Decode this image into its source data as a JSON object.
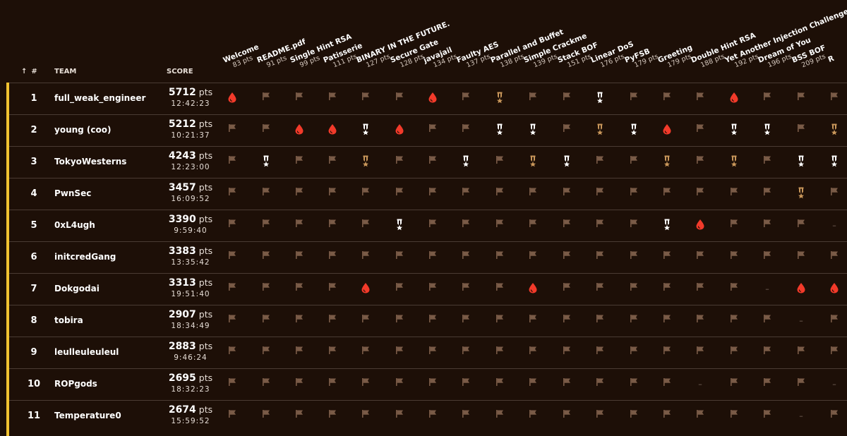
{
  "header": {
    "rank_label": "#",
    "sort_icon": "arrow-up-icon",
    "team_label": "TEAM",
    "score_label": "SCORE"
  },
  "challenges": [
    {
      "name": "Welcome",
      "points": "83 pts"
    },
    {
      "name": "README.pdf",
      "points": "91 pts"
    },
    {
      "name": "Single Hint RSA",
      "points": "99 pts"
    },
    {
      "name": "Patisserie",
      "points": "111 pts"
    },
    {
      "name": "BINARY IN THE FUTURE.",
      "points": "127 pts"
    },
    {
      "name": "Secure Gate",
      "points": "128 pts"
    },
    {
      "name": "javajail",
      "points": "134 pts"
    },
    {
      "name": "Faulty AES",
      "points": "137 pts"
    },
    {
      "name": "Parallel and Buffet",
      "points": "138 pts"
    },
    {
      "name": "Simple Crackme",
      "points": "139 pts"
    },
    {
      "name": "Stack BOF",
      "points": "151 pts"
    },
    {
      "name": "Linear DoS",
      "points": "176 pts"
    },
    {
      "name": "PyFSB",
      "points": "179 pts"
    },
    {
      "name": "Greeting",
      "points": "179 pts"
    },
    {
      "name": "Double Hint RSA",
      "points": "188 pts"
    },
    {
      "name": "Yet Another Injection Challenge",
      "points": "192 pts"
    },
    {
      "name": "Dream of You",
      "points": "196 pts"
    },
    {
      "name": "BSS BOF",
      "points": "209 pts"
    },
    {
      "name": "R",
      "points": ""
    }
  ],
  "icon_legend": {
    "F": "flag-icon",
    "B": "first-blood-icon",
    "S": "silver-medal-icon",
    "G": "bronze-medal-icon",
    "-": "unsolved-dash"
  },
  "colors": {
    "background": "#1d0f07",
    "flag": "#7a5b47",
    "first_blood": "#f23a2a",
    "silver_medal": "#ffffff",
    "bronze_medal": "#c8965a",
    "accent": "#f2c230",
    "row_border": "#4a3b33"
  },
  "teams": [
    {
      "rank": "1",
      "name": "full_weak_engineer",
      "score": "5712",
      "unit": "pts",
      "time": "12:42:23",
      "solves": "BFFFFFBFGFFSFFFBFFF"
    },
    {
      "rank": "2",
      "name": "young (coo)",
      "score": "5212",
      "unit": "pts",
      "time": "10:21:37",
      "solves": "FFBBSBFFSSFGSBFSSFG"
    },
    {
      "rank": "3",
      "name": "TokyoWesterns",
      "score": "4243",
      "unit": "pts",
      "time": "12:23:00",
      "solves": "FSFFGFFSFGSFFGFGFSS"
    },
    {
      "rank": "4",
      "name": "PwnSec",
      "score": "3457",
      "unit": "pts",
      "time": "16:09:52",
      "solves": "FFFFFFFFFFFFFFFFFGF"
    },
    {
      "rank": "5",
      "name": "0xL4ugh",
      "score": "3390",
      "unit": "pts",
      "time": "9:59:40",
      "solves": "FFFFFSFFFFFFFSBFFF-"
    },
    {
      "rank": "6",
      "name": "initcredGang",
      "score": "3383",
      "unit": "pts",
      "time": "13:35:42",
      "solves": "FFFFFFFFFFFFFFFFFFF"
    },
    {
      "rank": "7",
      "name": "Dokgodai",
      "score": "3313",
      "unit": "pts",
      "time": "19:51:40",
      "solves": "FFFFBFFFFBFFFFFF-BB"
    },
    {
      "rank": "8",
      "name": "tobira",
      "score": "2907",
      "unit": "pts",
      "time": "18:34:49",
      "solves": "FFFFFFFFFFFFFFFFF-F"
    },
    {
      "rank": "9",
      "name": "leulleuleuleul",
      "score": "2883",
      "unit": "pts",
      "time": "9:46:24",
      "solves": "FFFFFFFFFFFFFFFFFFF"
    },
    {
      "rank": "10",
      "name": "ROPgods",
      "score": "2695",
      "unit": "pts",
      "time": "18:32:23",
      "solves": "FFFFFFFFFFFFFF-FFF-"
    },
    {
      "rank": "11",
      "name": "Temperature0",
      "score": "2674",
      "unit": "pts",
      "time": "15:59:52",
      "solves": "FFFFFFFFFFFFFFFFF-F"
    }
  ]
}
